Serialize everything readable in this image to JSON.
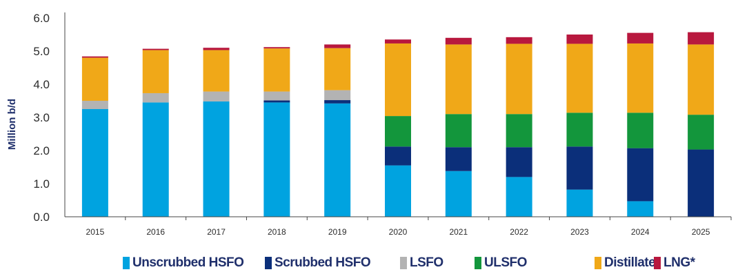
{
  "chart_data": {
    "type": "bar",
    "stacked": true,
    "title": "",
    "xlabel": "",
    "ylabel": "Million b/d",
    "ylim": [
      0,
      6
    ],
    "yticks": [
      "0.0",
      "1.0",
      "2.0",
      "3.0",
      "4.0",
      "5.0",
      "6.0"
    ],
    "grid": false,
    "legend_position": "bottom",
    "categories": [
      "2015",
      "2016",
      "2017",
      "2018",
      "2019",
      "2020",
      "2021",
      "2022",
      "2023",
      "2024",
      "2025"
    ],
    "series": [
      {
        "name": "Unscrubbed HSFO",
        "color": "#00a3e0",
        "values": [
          3.25,
          3.45,
          3.48,
          3.45,
          3.42,
          1.55,
          1.38,
          1.2,
          0.82,
          0.47,
          0.0
        ]
      },
      {
        "name": "Scrubbed HSFO",
        "color": "#0b2f7a",
        "values": [
          0.0,
          0.0,
          0.0,
          0.06,
          0.1,
          0.57,
          0.72,
          0.9,
          1.3,
          1.6,
          2.03
        ]
      },
      {
        "name": "LSFO",
        "color": "#b3b3b3",
        "values": [
          0.25,
          0.28,
          0.3,
          0.27,
          0.3,
          0.0,
          0.0,
          0.0,
          0.0,
          0.0,
          0.0
        ]
      },
      {
        "name": "ULSFO",
        "color": "#13963c",
        "values": [
          0.0,
          0.0,
          0.0,
          0.0,
          0.0,
          0.92,
          1.0,
          1.0,
          1.02,
          1.07,
          1.05
        ]
      },
      {
        "name": "Distillate",
        "color": "#f0a818",
        "values": [
          1.3,
          1.3,
          1.25,
          1.3,
          1.27,
          2.19,
          2.1,
          2.12,
          2.08,
          2.09,
          2.12
        ]
      },
      {
        "name": "LNG*",
        "color": "#b8183e",
        "values": [
          0.04,
          0.04,
          0.07,
          0.04,
          0.11,
          0.12,
          0.2,
          0.2,
          0.28,
          0.32,
          0.37
        ]
      }
    ]
  }
}
